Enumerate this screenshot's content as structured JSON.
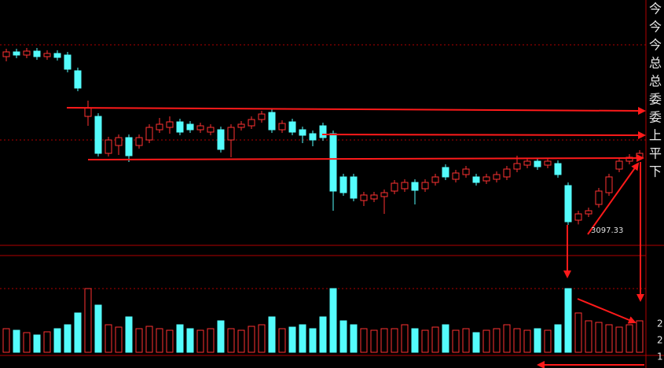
{
  "chart_data": {
    "type": "candlestick",
    "open": [
      3524,
      3536,
      3528,
      3538,
      3524,
      3532,
      3528,
      3488,
      3372,
      3372,
      3278,
      3298,
      3318,
      3298,
      3312,
      3338,
      3344,
      3358,
      3352,
      3338,
      3332,
      3338,
      3312,
      3344,
      3348,
      3364,
      3382,
      3338,
      3358,
      3338,
      3328,
      3348,
      3328,
      3218,
      3218,
      3158,
      3162,
      3168,
      3182,
      3188,
      3204,
      3188,
      3204,
      3242,
      3212,
      3224,
      3218,
      3208,
      3212,
      3218,
      3238,
      3248,
      3258,
      3248,
      3252,
      3196,
      3108,
      3124,
      3148,
      3178,
      3238,
      3258,
      3268
    ],
    "high": [
      3544,
      3544,
      3546,
      3546,
      3540,
      3540,
      3536,
      3496,
      3412,
      3380,
      3320,
      3326,
      3326,
      3326,
      3352,
      3368,
      3372,
      3366,
      3360,
      3356,
      3352,
      3346,
      3352,
      3360,
      3372,
      3386,
      3390,
      3362,
      3366,
      3346,
      3336,
      3356,
      3336,
      3226,
      3226,
      3180,
      3180,
      3186,
      3210,
      3212,
      3212,
      3212,
      3226,
      3250,
      3236,
      3246,
      3226,
      3226,
      3232,
      3246,
      3272,
      3266,
      3266,
      3266,
      3260,
      3204,
      3132,
      3140,
      3190,
      3226,
      3266,
      3276,
      3286
    ],
    "low": [
      3512,
      3520,
      3520,
      3516,
      3516,
      3514,
      3484,
      3436,
      3348,
      3270,
      3270,
      3274,
      3256,
      3290,
      3304,
      3330,
      3328,
      3324,
      3330,
      3330,
      3324,
      3280,
      3268,
      3336,
      3340,
      3356,
      3330,
      3330,
      3324,
      3304,
      3296,
      3310,
      3132,
      3170,
      3156,
      3144,
      3154,
      3124,
      3174,
      3180,
      3148,
      3180,
      3196,
      3210,
      3204,
      3216,
      3196,
      3200,
      3204,
      3210,
      3230,
      3240,
      3236,
      3240,
      3216,
      3096,
      3097.33,
      3116,
      3140,
      3170,
      3230,
      3250,
      3260
    ],
    "close": [
      3536,
      3528,
      3538,
      3524,
      3532,
      3522,
      3492,
      3444,
      3394,
      3278,
      3312,
      3318,
      3272,
      3318,
      3344,
      3352,
      3358,
      3332,
      3338,
      3348,
      3344,
      3288,
      3344,
      3352,
      3364,
      3378,
      3338,
      3354,
      3332,
      3324,
      3312,
      3318,
      3182,
      3178,
      3164,
      3172,
      3172,
      3178,
      3202,
      3204,
      3184,
      3204,
      3218,
      3218,
      3228,
      3238,
      3204,
      3218,
      3224,
      3238,
      3252,
      3258,
      3244,
      3258,
      3224,
      3104,
      3124,
      3132,
      3182,
      3218,
      3258,
      3268,
      3278
    ],
    "volume": [
      30,
      28,
      25,
      22,
      26,
      30,
      35,
      50,
      81,
      60,
      35,
      32,
      45,
      30,
      33,
      30,
      28,
      35,
      30,
      28,
      30,
      40,
      30,
      28,
      33,
      35,
      45,
      30,
      32,
      35,
      30,
      45,
      81,
      40,
      35,
      30,
      28,
      30,
      30,
      35,
      30,
      28,
      32,
      35,
      28,
      30,
      25,
      28,
      30,
      35,
      30,
      28,
      30,
      28,
      35,
      81,
      50,
      40,
      38,
      35,
      32,
      35,
      40
    ],
    "ylim": [
      3044,
      3668
    ],
    "vlim": [
      0,
      86
    ],
    "up_color": "#ff3232",
    "down_color": "#54fcfc",
    "side_labels": [
      "今",
      "今",
      "今",
      "总",
      "总",
      "委",
      "委",
      "上",
      "平",
      "下"
    ],
    "volume_side_labels": [
      "2",
      "2",
      "1"
    ]
  }
}
